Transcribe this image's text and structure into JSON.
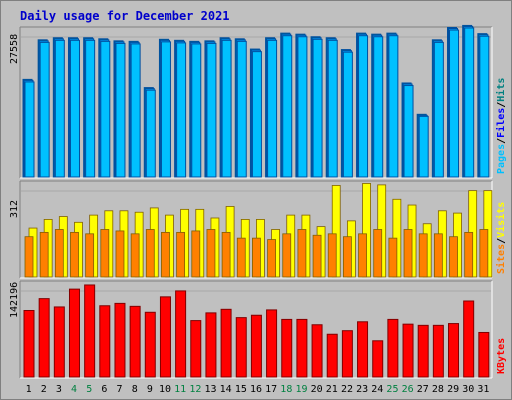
{
  "chart_data": {
    "type": "bar",
    "title": "Daily usage for December 2021",
    "categories": [
      "1",
      "2",
      "3",
      "4",
      "5",
      "6",
      "7",
      "8",
      "9",
      "10",
      "11",
      "12",
      "13",
      "14",
      "15",
      "16",
      "17",
      "18",
      "19",
      "20",
      "21",
      "22",
      "23",
      "24",
      "25",
      "26",
      "27",
      "28",
      "29",
      "30",
      "31"
    ],
    "weekend_days": [
      4,
      5,
      11,
      12,
      18,
      19,
      25,
      26
    ],
    "colors": {
      "pages": "#00c0ff",
      "pages_dark": "#0050a0",
      "files": "#00a0ff",
      "hits": "#008080",
      "sites": "#ff8000",
      "visits": "#ffff00",
      "kbytes": "#ff0000",
      "weekday_label": "#000000",
      "weekend_label": "#008040",
      "title": "#0000cc"
    },
    "panels": [
      {
        "name": "hits-files-pages",
        "ytick": "27558",
        "ymax": 29000,
        "legend": [
          {
            "text": "Pages",
            "color": "#00c0ff"
          },
          {
            "text": "/",
            "color": "#000000"
          },
          {
            "text": "Files",
            "color": "#0000ff"
          },
          {
            "text": "/",
            "color": "#000000"
          },
          {
            "text": "Hits",
            "color": "#008080"
          }
        ],
        "series": [
          {
            "name": "Hits",
            "values": [
              19000,
              26700,
              27100,
              27100,
              27100,
              26900,
              26500,
              26400,
              17400,
              26800,
              26600,
              26400,
              26500,
              27100,
              26900,
              24900,
              27100,
              28000,
              27800,
              27300,
              27100,
              24800,
              28000,
              27800,
              28000,
              18300,
              12200,
              26700,
              29100,
              29500,
              27900
            ]
          },
          {
            "name": "Files",
            "values": [
              18800,
              26500,
              26900,
              26900,
              26900,
              26700,
              26300,
              26200,
              17200,
              26600,
              26400,
              26200,
              26300,
              26900,
              26700,
              24700,
              26900,
              27800,
              27600,
              27100,
              26900,
              24600,
              27800,
              27600,
              27800,
              18100,
              12000,
              26500,
              28900,
              29300,
              27700
            ]
          },
          {
            "name": "Pages",
            "values": [
              18500,
              26200,
              26600,
              26600,
              26600,
              26400,
              26000,
              25900,
              16900,
              26300,
              26100,
              25900,
              26000,
              26600,
              26400,
              24400,
              26600,
              27500,
              27300,
              26800,
              26600,
              24300,
              27500,
              27300,
              27500,
              17800,
              11800,
              26200,
              28600,
              29000,
              27400
            ]
          }
        ]
      },
      {
        "name": "visits-sites",
        "ytick": "312",
        "ymax": 330,
        "legend": [
          {
            "text": "Sites",
            "color": "#ff8000"
          },
          {
            "text": "/",
            "color": "#000000"
          },
          {
            "text": "Visits",
            "color": "#ffff00"
          }
        ],
        "series": [
          {
            "name": "Visits",
            "values": [
              170,
              200,
              210,
              190,
              215,
              230,
              230,
              225,
              240,
              215,
              235,
              235,
              205,
              245,
              200,
              200,
              165,
              215,
              215,
              175,
              318,
              195,
              325,
              320,
              270,
              250,
              185,
              230,
              222,
              300,
              300
            ]
          },
          {
            "name": "Sites",
            "values": [
              140,
              155,
              165,
              155,
              150,
              165,
              160,
              150,
              165,
              155,
              155,
              160,
              165,
              155,
              135,
              135,
              130,
              150,
              165,
              145,
              150,
              140,
              150,
              165,
              135,
              165,
              150,
              150,
              140,
              155,
              165
            ]
          }
        ]
      },
      {
        "name": "kbytes",
        "ytick": "142196",
        "ymax": 160000,
        "legend": [
          {
            "text": "KBytes",
            "color": "#ff0000"
          }
        ],
        "series": [
          {
            "name": "KBytes",
            "values": [
              112000,
              132000,
              118000,
              148000,
              155000,
              120000,
              124000,
              119000,
              109000,
              135000,
              145000,
              95000,
              108000,
              114000,
              100000,
              104000,
              113000,
              97000,
              97000,
              88000,
              72000,
              78000,
              93000,
              61000,
              97000,
              89000,
              87000,
              87000,
              90000,
              128000,
              75000
            ]
          }
        ]
      }
    ]
  }
}
